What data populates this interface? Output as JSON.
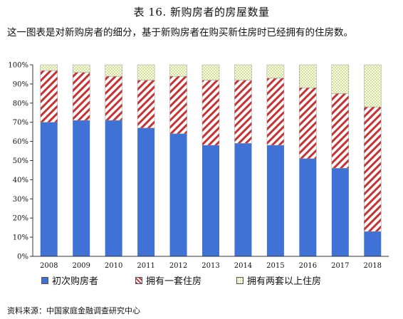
{
  "title": "表 16. 新购房者的房屋数量",
  "subtitle": "这一图表是对新购房者的细分，基于新购房者在购买新住房时已经拥有的住房数。",
  "source": "资料来源：中国家庭金融调查研究中心",
  "colors": {
    "first": "#3f72d4",
    "one_more_stripe": "#c83232",
    "two_plus_dot": "#9bbf3a"
  },
  "chart_data": {
    "type": "bar",
    "stacked": true,
    "categories": [
      "2008",
      "2009",
      "2010",
      "2011",
      "2012",
      "2013",
      "2014",
      "2015",
      "2016",
      "2017",
      "2018"
    ],
    "ylim": [
      0,
      100
    ],
    "yticks": [
      "0%",
      "10%",
      "20%",
      "30%",
      "40%",
      "50%",
      "60%",
      "70%",
      "80%",
      "90%",
      "100%"
    ],
    "series": [
      {
        "name": "初次购房者",
        "values": [
          70,
          71,
          71,
          67,
          64,
          58,
          59,
          58,
          51,
          46,
          13
        ]
      },
      {
        "name": "拥有一套住房",
        "values": [
          27,
          25,
          23,
          25,
          30,
          34,
          33,
          35,
          37,
          39,
          65
        ]
      },
      {
        "name": "拥有两套以上住房",
        "values": [
          3,
          4,
          6,
          8,
          6,
          8,
          8,
          7,
          12,
          15,
          22
        ]
      }
    ],
    "legend_position": "bottom",
    "grid": false
  }
}
